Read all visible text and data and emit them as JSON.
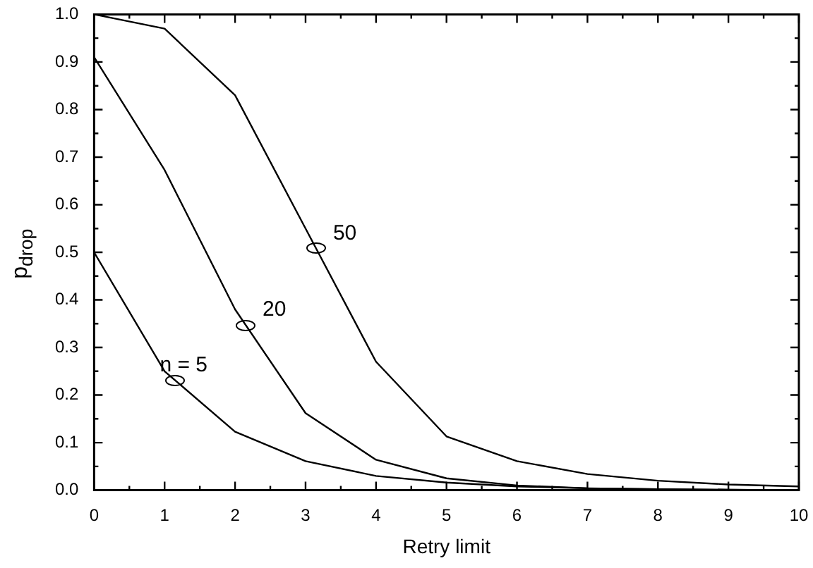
{
  "chart_data": {
    "type": "line",
    "xlabel": "Retry limit",
    "ylabel": "p$_{drop}$",
    "x": [
      0,
      1,
      2,
      3,
      4,
      5,
      6,
      7,
      8,
      9,
      10
    ],
    "series": [
      {
        "name": "n = 5",
        "color": "#000000",
        "values": [
          0.5,
          0.25,
          0.123,
          0.061,
          0.03,
          0.016,
          0.008,
          0.004,
          0.002,
          0.001,
          0.0
        ]
      },
      {
        "name": "20",
        "color": "#000000",
        "values": [
          0.91,
          0.673,
          0.38,
          0.162,
          0.064,
          0.025,
          0.01,
          0.004,
          0.002,
          0.001,
          0.0
        ]
      },
      {
        "name": "50",
        "color": "#000000",
        "values": [
          1.0,
          0.97,
          0.83,
          0.55,
          0.27,
          0.113,
          0.061,
          0.034,
          0.02,
          0.012,
          0.008
        ]
      }
    ],
    "xlim": [
      0,
      10
    ],
    "xticks": [
      0,
      1,
      2,
      3,
      4,
      5,
      6,
      7,
      8,
      9,
      10
    ],
    "ylim": [
      0,
      1
    ],
    "yticks": [
      {
        "value": 0,
        "label": "0.0"
      },
      {
        "value": 0.1,
        "label": "0.1"
      },
      {
        "value": 0.2,
        "label": "0.2"
      },
      {
        "value": 0.3,
        "label": "0.3"
      },
      {
        "value": 0.4,
        "label": "0.4"
      },
      {
        "value": 0.5,
        "label": "0.5"
      },
      {
        "value": 0.6,
        "label": "0.6"
      },
      {
        "value": 0.7,
        "label": "0.7"
      },
      {
        "value": 0.8,
        "label": "0.8"
      },
      {
        "value": 0.9,
        "label": "0.9"
      },
      {
        "value": 1,
        "label": "1.0"
      }
    ],
    "grid": false,
    "legend": false,
    "marker": "none",
    "line_style": "solid"
  }
}
